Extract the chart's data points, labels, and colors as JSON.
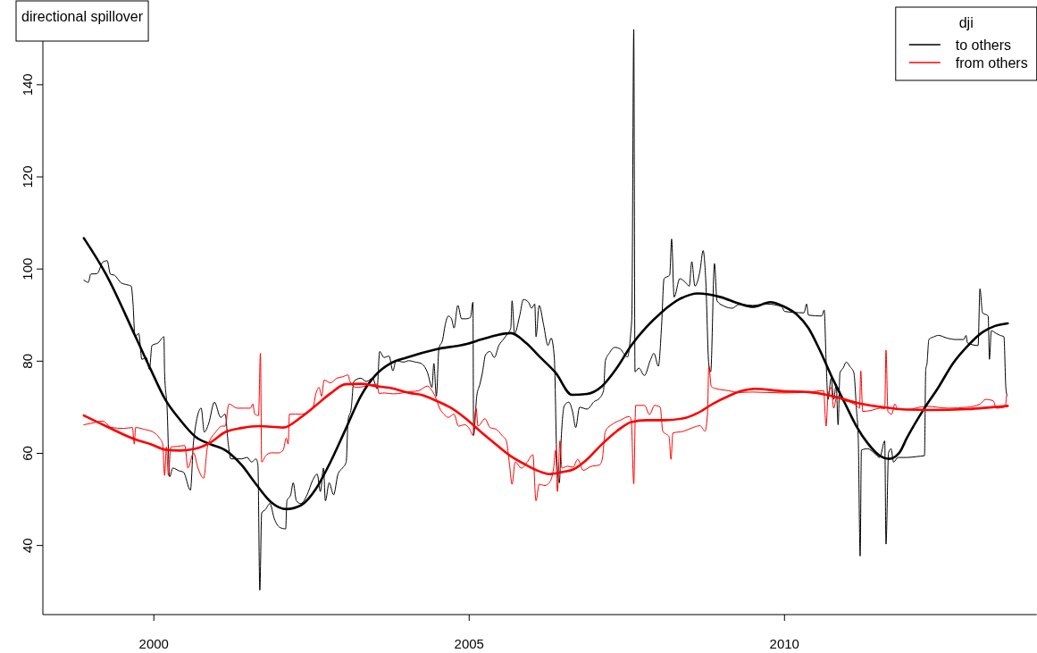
{
  "chart_data": {
    "type": "line",
    "annotations": [
      "directional spillover"
    ],
    "legend_title": "dji",
    "legend": "top right",
    "xlim": [
      1998.24,
      2014.0
    ],
    "xticks": [
      2000,
      2005,
      2010
    ],
    "ylim": [
      25,
      158
    ],
    "yticks": [
      40,
      60,
      80,
      100,
      120,
      140
    ],
    "series": [
      {
        "name": "to others",
        "color": "#000000",
        "x": [
          1998.89,
          1998.96,
          1999.0,
          1999.1,
          1999.19,
          1999.26,
          1999.31,
          1999.38,
          1999.48,
          1999.57,
          1999.64,
          1999.67,
          1999.7,
          1999.76,
          1999.81,
          1999.88,
          1999.93,
          1999.97,
          2000.07,
          2000.16,
          2000.17,
          2000.21,
          2000.25,
          2000.3,
          2000.4,
          2000.47,
          2000.58,
          2000.63,
          2000.75,
          2000.8,
          2000.87,
          2000.96,
          2001.06,
          2001.13,
          2001.18,
          2001.22,
          2001.39,
          2001.48,
          2001.55,
          2001.62,
          2001.65,
          2001.68,
          2001.71,
          2001.77,
          2001.84,
          2001.91,
          2002.0,
          2002.09,
          2002.11,
          2002.17,
          2002.21,
          2002.26,
          2002.33,
          2002.43,
          2002.52,
          2002.59,
          2002.64,
          2002.69,
          2002.72,
          2002.78,
          2002.85,
          2002.92,
          2002.99,
          2003.05,
          2003.08,
          2003.13,
          2003.17,
          2003.28,
          2003.37,
          2003.47,
          2003.54,
          2003.58,
          2003.65,
          2003.73,
          2003.79,
          2003.84,
          2003.96,
          2004.04,
          2004.15,
          2004.24,
          2004.34,
          2004.41,
          2004.44,
          2004.48,
          2004.52,
          2004.58,
          2004.62,
          2004.67,
          2004.72,
          2004.76,
          2004.82,
          2004.88,
          2004.95,
          2005.02,
          2005.06,
          2005.07,
          2005.12,
          2005.17,
          2005.21,
          2005.26,
          2005.33,
          2005.4,
          2005.47,
          2005.54,
          2005.61,
          2005.66,
          2005.68,
          2005.72,
          2005.8,
          2005.86,
          2005.94,
          2005.99,
          2006.04,
          2006.06,
          2006.11,
          2006.18,
          2006.25,
          2006.3,
          2006.35,
          2006.39,
          2006.43,
          2006.46,
          2006.51,
          2006.58,
          2006.64,
          2006.69,
          2006.75,
          2006.87,
          2006.98,
          2007.07,
          2007.13,
          2007.16,
          2007.22,
          2007.31,
          2007.4,
          2007.45,
          2007.51,
          2007.56,
          2007.58,
          2007.61,
          2007.63,
          2007.69,
          2007.78,
          2007.87,
          2007.93,
          2008.0,
          2008.05,
          2008.09,
          2008.18,
          2008.21,
          2008.25,
          2008.34,
          2008.43,
          2008.49,
          2008.53,
          2008.58,
          2008.66,
          2008.71,
          2008.75,
          2008.8,
          2008.83,
          2008.89,
          2008.93,
          2009.05,
          2009.17,
          2009.28,
          2009.49,
          2009.72,
          2009.96,
          2010.0,
          2010.31,
          2010.35,
          2010.38,
          2010.59,
          2010.63,
          2010.66,
          2010.69,
          2010.74,
          2010.78,
          2010.82,
          2010.85,
          2010.88,
          2010.93,
          2010.98,
          2011.04,
          2011.1,
          2011.14,
          2011.17,
          2011.2,
          2011.22,
          2011.32,
          2011.42,
          2011.51,
          2011.59,
          2011.61,
          2011.65,
          2011.69,
          2011.73,
          2011.8,
          2011.94,
          2012.1,
          2012.22,
          2012.24,
          2012.26,
          2012.29,
          2012.37,
          2012.44,
          2012.58,
          2012.72,
          2012.84,
          2012.88,
          2012.9,
          2013.07,
          2013.1,
          2013.14,
          2013.23,
          2013.25,
          2013.28,
          2013.36,
          2013.42,
          2013.48,
          2013.51,
          2013.53
        ],
        "values": [
          97.6,
          97.1,
          98.9,
          99.0,
          101.5,
          101.8,
          98.9,
          98.6,
          97.0,
          96.6,
          96.3,
          92.4,
          85.3,
          86.0,
          80.4,
          80.8,
          78.2,
          83.4,
          84.0,
          85.3,
          77.5,
          69.8,
          54.9,
          56.8,
          56.2,
          55.9,
          52.0,
          62.7,
          69.8,
          64.6,
          66.5,
          71.1,
          67.8,
          68.5,
          62.0,
          58.8,
          58.8,
          59.1,
          58.1,
          58.8,
          57.5,
          30.3,
          47.1,
          47.8,
          49.1,
          45.8,
          43.9,
          43.6,
          49.7,
          51.0,
          53.6,
          49.7,
          49.1,
          51.0,
          54.2,
          55.5,
          51.7,
          56.8,
          49.7,
          53.6,
          51.0,
          55.5,
          56.8,
          58.1,
          67.2,
          69.8,
          75.6,
          76.3,
          75.6,
          76.3,
          74.0,
          82.1,
          80.8,
          81.1,
          77.9,
          80.1,
          79.8,
          80.1,
          79.8,
          79.5,
          77.5,
          74.3,
          79.5,
          72.4,
          82.7,
          84.7,
          87.9,
          89.8,
          89.2,
          87.2,
          92.1,
          89.2,
          89.2,
          89.5,
          92.8,
          63.9,
          72.4,
          75.0,
          77.5,
          81.4,
          82.1,
          80.8,
          83.4,
          84.7,
          86.0,
          87.2,
          93.1,
          86.0,
          89.8,
          93.4,
          92.8,
          91.5,
          92.4,
          85.3,
          92.1,
          87.9,
          83.4,
          85.0,
          80.8,
          58.8,
          53.6,
          63.3,
          70.4,
          71.1,
          69.0,
          65.6,
          70.0,
          69.6,
          71.2,
          72.0,
          73.6,
          80.1,
          81.7,
          83.0,
          82.6,
          81.7,
          80.9,
          85.8,
          89.8,
          152.0,
          77.7,
          78.5,
          76.9,
          80.1,
          81.7,
          78.9,
          87.4,
          97.9,
          98.7,
          106.5,
          93.9,
          97.9,
          97.1,
          96.3,
          101.6,
          96.3,
          99.6,
          104.0,
          98.0,
          79.3,
          77.7,
          101.2,
          93.1,
          91.9,
          91.5,
          92.3,
          92.1,
          92.4,
          91.8,
          90.8,
          90.5,
          92.4,
          90.0,
          89.8,
          91.1,
          80.1,
          71.7,
          76.3,
          71.7,
          75.0,
          66.2,
          77.5,
          78.5,
          79.8,
          78.8,
          77.5,
          69.8,
          63.3,
          37.7,
          60.7,
          61.0,
          60.1,
          59.1,
          62.7,
          40.3,
          60.1,
          61.0,
          58.1,
          59.1,
          59.1,
          59.3,
          59.5,
          78.2,
          79.5,
          84.7,
          85.3,
          85.6,
          85.0,
          84.7,
          84.7,
          85.6,
          84.0,
          83.4,
          95.7,
          90.5,
          89.8,
          80.4,
          86.6,
          86.0,
          85.6,
          85.3,
          74.3,
          72.5
        ]
      },
      {
        "name": "from others",
        "color": "#ff0000",
        "x": [
          1998.89,
          1999.0,
          1999.19,
          1999.33,
          1999.52,
          1999.66,
          1999.69,
          1999.71,
          1999.85,
          1999.99,
          2000.09,
          2000.14,
          2000.17,
          2000.2,
          2000.23,
          2000.27,
          2000.37,
          2000.49,
          2000.54,
          2000.63,
          2000.7,
          2000.79,
          2000.85,
          2000.98,
          2001.08,
          2001.13,
          2001.19,
          2001.32,
          2001.46,
          2001.53,
          2001.57,
          2001.6,
          2001.66,
          2001.69,
          2001.71,
          2001.77,
          2001.86,
          2001.98,
          2002.05,
          2002.1,
          2002.13,
          2002.15,
          2002.24,
          2002.33,
          2002.52,
          2002.57,
          2002.62,
          2002.66,
          2002.7,
          2002.8,
          2002.9,
          2002.99,
          2003.08,
          2003.11,
          2003.21,
          2003.37,
          2003.54,
          2003.57,
          2003.65,
          2003.8,
          2003.94,
          2004.01,
          2004.2,
          2004.34,
          2004.41,
          2004.46,
          2004.53,
          2004.6,
          2004.67,
          2004.76,
          2004.83,
          2004.93,
          2005.01,
          2005.06,
          2005.11,
          2005.14,
          2005.25,
          2005.33,
          2005.43,
          2005.52,
          2005.59,
          2005.64,
          2005.68,
          2005.73,
          2005.83,
          2005.92,
          2006.01,
          2006.06,
          2006.11,
          2006.2,
          2006.27,
          2006.34,
          2006.37,
          2006.4,
          2006.44,
          2006.47,
          2006.56,
          2006.65,
          2006.72,
          2006.81,
          2006.92,
          2007.07,
          2007.11,
          2007.16,
          2007.28,
          2007.4,
          2007.54,
          2007.57,
          2007.61,
          2007.64,
          2007.78,
          2007.86,
          2007.94,
          2008.03,
          2008.07,
          2008.17,
          2008.2,
          2008.23,
          2008.4,
          2008.55,
          2008.66,
          2008.74,
          2008.78,
          2008.8,
          2008.84,
          2008.9,
          2009.11,
          2009.28,
          2009.49,
          2009.96,
          2010.38,
          2010.62,
          2010.66,
          2010.69,
          2010.74,
          2010.78,
          2010.83,
          2010.9,
          2011.04,
          2011.14,
          2011.19,
          2011.21,
          2011.24,
          2011.37,
          2011.52,
          2011.59,
          2011.61,
          2011.64,
          2011.7,
          2011.75,
          2011.8,
          2011.94,
          2012.25,
          2012.6,
          2012.9,
          2013.1,
          2013.19,
          2013.31,
          2013.36,
          2013.5,
          2013.52
        ],
        "values": [
          66.2,
          66.5,
          67.0,
          65.6,
          65.4,
          65.6,
          62.0,
          65.6,
          65.2,
          64.6,
          63.3,
          62.0,
          55.2,
          61.4,
          55.2,
          61.4,
          61.5,
          61.7,
          56.8,
          60.1,
          56.8,
          54.6,
          61.4,
          64.6,
          65.9,
          65.9,
          70.7,
          69.8,
          69.8,
          69.8,
          70.7,
          68.5,
          68.2,
          81.7,
          58.1,
          59.4,
          60.1,
          60.1,
          60.7,
          63.3,
          62.0,
          68.5,
          68.5,
          68.5,
          69.8,
          73.0,
          74.3,
          72.4,
          75.9,
          75.3,
          76.3,
          76.6,
          77.0,
          75.6,
          74.3,
          74.6,
          75.0,
          73.0,
          73.1,
          72.9,
          73.1,
          73.3,
          73.6,
          74.6,
          73.6,
          72.4,
          69.8,
          68.5,
          67.8,
          68.5,
          65.9,
          66.2,
          65.2,
          63.9,
          69.8,
          65.9,
          67.5,
          65.6,
          65.2,
          63.9,
          62.7,
          57.5,
          53.3,
          58.1,
          56.8,
          58.1,
          59.7,
          49.7,
          53.3,
          53.0,
          53.6,
          56.8,
          60.7,
          51.7,
          62.7,
          56.8,
          57.2,
          57.0,
          58.7,
          56.3,
          57.1,
          57.5,
          58.7,
          64.8,
          66.4,
          67.2,
          68.0,
          67.2,
          53.4,
          70.4,
          70.4,
          68.4,
          70.4,
          70.0,
          64.8,
          63.6,
          58.7,
          64.4,
          64.8,
          65.6,
          66.0,
          64.8,
          68.8,
          78.9,
          74.5,
          74.1,
          73.6,
          73.2,
          73.3,
          73.1,
          73.3,
          73.6,
          65.9,
          72.4,
          74.3,
          69.8,
          72.4,
          71.7,
          71.1,
          70.4,
          69.8,
          77.9,
          69.1,
          69.3,
          69.8,
          69.7,
          82.4,
          69.1,
          68.5,
          70.7,
          69.5,
          69.5,
          70.2,
          69.8,
          70.0,
          70.7,
          71.7,
          71.4,
          69.8,
          70.1,
          72.4
        ]
      },
      {
        "color": "#000000",
        "x": [
          1998.89,
          1999.24,
          1999.71,
          1999.95,
          2000.18,
          2000.42,
          2000.66,
          2000.89,
          2001.13,
          2001.39,
          2001.62,
          2001.86,
          2002.1,
          2002.33,
          2002.57,
          2002.8,
          2003.04,
          2003.28,
          2003.51,
          2003.75,
          2004.01,
          2004.48,
          2004.95,
          2005.19,
          2005.42,
          2005.66,
          2005.9,
          2006.13,
          2006.37,
          2006.63,
          2006.87,
          2007.1,
          2007.34,
          2007.57,
          2007.81,
          2008.05,
          2008.34,
          2008.63,
          2008.99,
          2009.28,
          2009.51,
          2009.77,
          2010.0,
          2010.19,
          2010.38,
          2010.57,
          2010.76,
          2010.95,
          2011.14,
          2011.33,
          2011.52,
          2011.66,
          2011.82,
          2011.94,
          2012.22,
          2012.44,
          2012.67,
          2012.91,
          2013.14,
          2013.33,
          2013.54
        ],
        "values": [
          106.7,
          98.9,
          85.3,
          78.2,
          71.7,
          67.2,
          63.6,
          62.0,
          60.7,
          57.5,
          53.3,
          49.4,
          47.9,
          48.7,
          52.3,
          58.1,
          65.2,
          72.4,
          76.9,
          79.5,
          80.8,
          82.6,
          83.7,
          84.7,
          85.6,
          86.1,
          84.0,
          80.8,
          77.5,
          72.7,
          72.9,
          74.5,
          78.5,
          83.4,
          87.4,
          90.6,
          93.5,
          94.7,
          93.9,
          92.5,
          91.8,
          92.8,
          91.8,
          90.2,
          87.2,
          82.1,
          76.3,
          71.1,
          65.9,
          62.0,
          59.4,
          58.8,
          60.1,
          63.3,
          69.8,
          74.3,
          79.5,
          83.4,
          86.3,
          87.6,
          88.2
        ]
      },
      {
        "color": "#ff0000",
        "x": [
          1998.89,
          1999.24,
          1999.71,
          1999.95,
          2000.18,
          2000.42,
          2000.66,
          2000.89,
          2001.13,
          2001.39,
          2001.67,
          2002.05,
          2002.33,
          2002.57,
          2002.8,
          2003.04,
          2003.28,
          2003.51,
          2003.75,
          2004.06,
          2004.24,
          2004.48,
          2004.72,
          2004.95,
          2005.19,
          2005.42,
          2005.66,
          2005.9,
          2006.13,
          2006.27,
          2006.46,
          2006.65,
          2006.87,
          2007.1,
          2007.34,
          2007.57,
          2007.81,
          2008.1,
          2008.4,
          2008.63,
          2008.87,
          2009.11,
          2009.31,
          2009.53,
          2009.96,
          2010.38,
          2010.67,
          2010.95,
          2011.23,
          2011.52,
          2011.94,
          2012.3,
          2012.9,
          2013.54
        ],
        "values": [
          68.2,
          65.9,
          63.0,
          62.0,
          60.8,
          60.6,
          61.0,
          62.3,
          64.6,
          65.5,
          65.9,
          65.6,
          67.8,
          70.4,
          73.0,
          75.0,
          75.1,
          74.6,
          74.2,
          73.1,
          72.7,
          71.4,
          69.8,
          67.5,
          64.6,
          62.0,
          59.4,
          57.5,
          56.0,
          55.5,
          55.9,
          56.5,
          58.7,
          61.9,
          64.8,
          66.8,
          67.2,
          67.2,
          67.6,
          68.8,
          70.8,
          72.4,
          73.5,
          74.0,
          73.5,
          73.3,
          72.7,
          71.7,
          70.7,
          70.1,
          69.5,
          69.4,
          69.6,
          70.3
        ]
      }
    ]
  }
}
